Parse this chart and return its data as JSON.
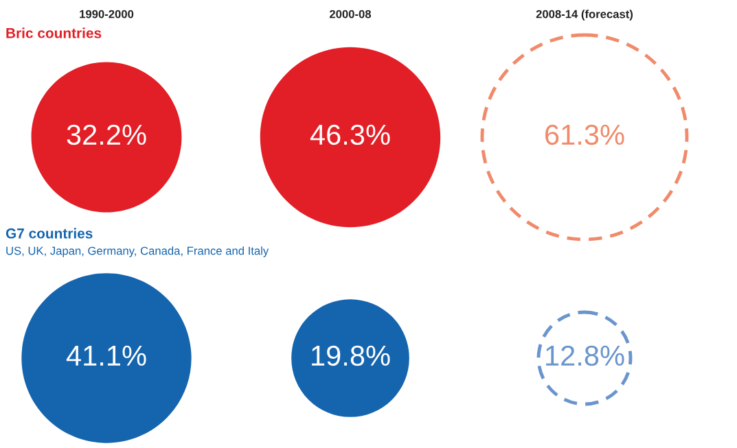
{
  "chart_data": {
    "type": "other",
    "categories": [
      "1990-2000",
      "2000-08",
      "2008-14 (forecast)"
    ],
    "series": [
      {
        "name": "Bric countries",
        "color": "#e21f26",
        "line_style": "solid",
        "values": [
          32.2,
          46.3,
          null
        ],
        "value_labels": [
          "32.2%",
          "46.3%",
          null
        ]
      },
      {
        "name": "G7 countries",
        "color": "#1565ae",
        "line_style": "solid",
        "values": [
          41.1,
          19.8,
          null
        ],
        "value_labels": [
          "41.1%",
          "19.8%",
          null
        ]
      },
      {
        "color": "#f08a6a",
        "line_style": "dashed",
        "values": [
          null,
          null,
          61.3
        ],
        "value_labels": [
          null,
          null,
          "61.3%"
        ]
      },
      {
        "color": "#6a95cc",
        "line_style": "dashed",
        "values": [
          null,
          null,
          12.8
        ],
        "value_labels": [
          null,
          null,
          "12.8%"
        ]
      }
    ],
    "annotations": [
      "US, UK, Japan, Germany, Canada, France and Italy"
    ]
  }
}
